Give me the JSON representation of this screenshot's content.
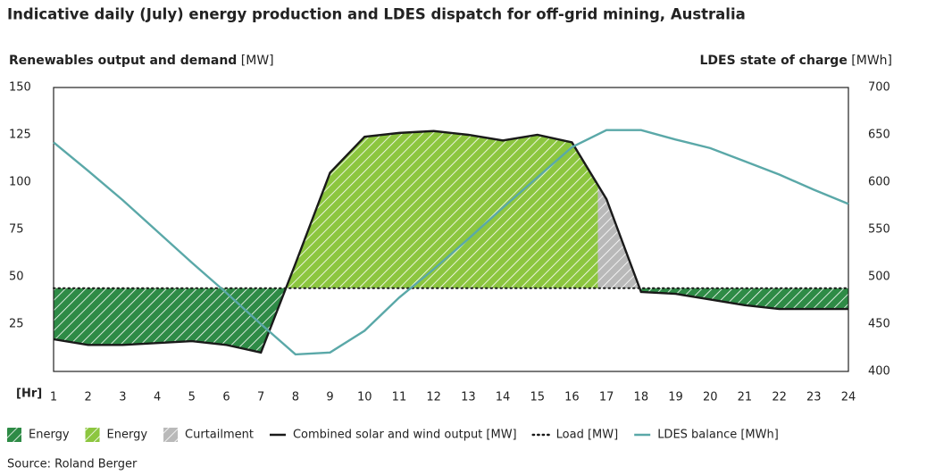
{
  "chart_data": {
    "type": "line",
    "title": "Indicative daily (July) energy production and LDES dispatch for off-grid mining, Australia",
    "y_label": "Renewables output and demand",
    "y_unit": "[MW]",
    "y2_label": "LDES state of charge",
    "y2_unit": "[MWh]",
    "x_label": "[Hr]",
    "categories": [
      "1",
      "2",
      "3",
      "4",
      "5",
      "6",
      "7",
      "8",
      "9",
      "10",
      "11",
      "12",
      "13",
      "14",
      "15",
      "16",
      "17",
      "18",
      "19",
      "20",
      "21",
      "22",
      "23",
      "24"
    ],
    "ylim": [
      0,
      150
    ],
    "yticks": [
      25,
      50,
      75,
      100,
      125,
      150
    ],
    "y2lim": [
      400,
      700
    ],
    "y2ticks": [
      400,
      450,
      500,
      550,
      600,
      650,
      700
    ],
    "areas": [
      {
        "name": "Energy",
        "color": "#2e8b46"
      },
      {
        "name": "Energy",
        "color": "#8cc63f"
      },
      {
        "name": "Curtailment",
        "color": "#b9b9b9"
      }
    ],
    "series": [
      {
        "name": "Combined solar and wind output [MW]",
        "color": "#1a1a1a",
        "style": "solid",
        "values": [
          17,
          14,
          14,
          15,
          16,
          14,
          10,
          57,
          105,
          124,
          126,
          127,
          125,
          122,
          125,
          121,
          91,
          42,
          41,
          38,
          35,
          33,
          33,
          33
        ]
      },
      {
        "name": "Load [MW]",
        "color": "#1a1a1a",
        "style": "dotted",
        "values": [
          44,
          44,
          44,
          44,
          44,
          44,
          44,
          44,
          44,
          44,
          44,
          44,
          44,
          44,
          44,
          44,
          44,
          44,
          44,
          44,
          44,
          44,
          44,
          44
        ]
      },
      {
        "name": "LDES balance [MWh]",
        "color": "#5aa8a8",
        "style": "solid",
        "axis": "y2",
        "values": [
          642,
          612,
          581,
          548,
          515,
          483,
          450,
          418,
          420,
          443,
          478,
          508,
          540,
          573,
          605,
          637,
          655,
          655,
          645,
          636,
          622,
          608,
          592,
          577
        ]
      }
    ],
    "source": "Source: Roland Berger"
  }
}
